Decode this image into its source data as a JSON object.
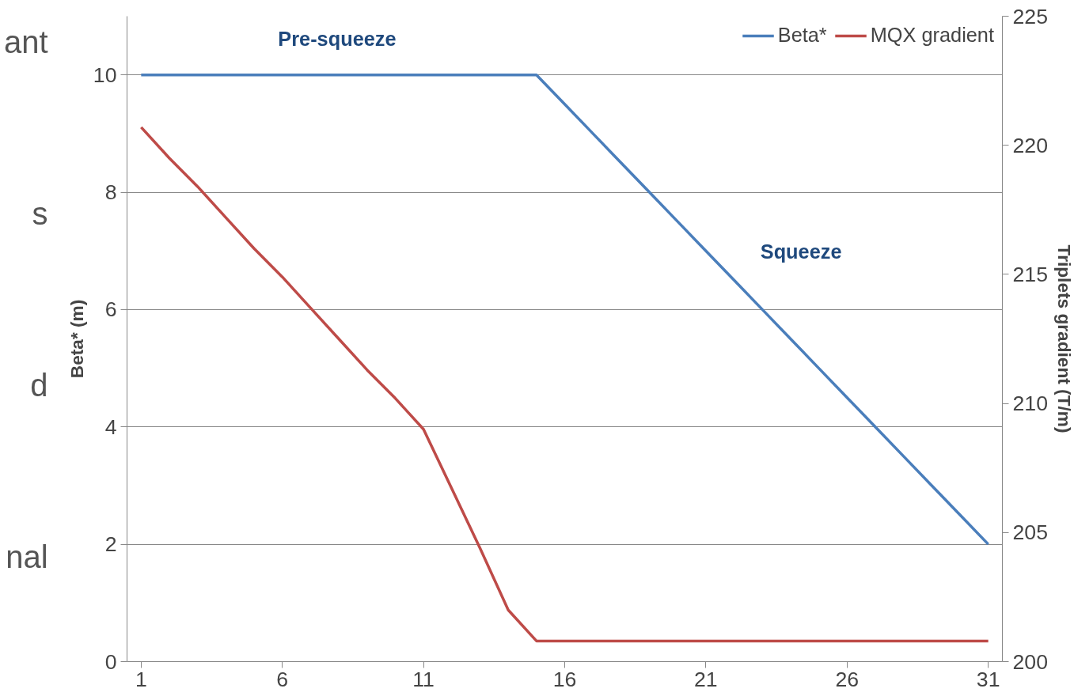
{
  "chart_data": {
    "type": "line",
    "ylabel": "Beta* (m)",
    "y2label": "Triplets gradient (T/m)",
    "x": [
      1,
      2,
      3,
      4,
      5,
      6,
      7,
      8,
      9,
      10,
      11,
      12,
      13,
      14,
      15,
      16,
      17,
      18,
      19,
      20,
      21,
      22,
      23,
      24,
      25,
      26,
      27,
      28,
      29,
      30,
      31
    ],
    "series": [
      {
        "name": "Beta*",
        "color": "#4a7ebb",
        "values": [
          10,
          10,
          10,
          10,
          10,
          10,
          10,
          10,
          10,
          10,
          10,
          10,
          10,
          10,
          10,
          9.5,
          9,
          8.5,
          8,
          7.5,
          7,
          6.5,
          6,
          5.5,
          5,
          4.5,
          4,
          3.5,
          3,
          2.5,
          2
        ]
      },
      {
        "name": "MQX gradient",
        "color": "#be4b48",
        "axis": "y2",
        "values": [
          220.7,
          219.5,
          218.4,
          217.2,
          216.0,
          214.9,
          213.7,
          212.5,
          211.3,
          210.2,
          209.0,
          206.7,
          204.4,
          202.0,
          200.8,
          200.8,
          200.8,
          200.8,
          200.8,
          200.8,
          200.8,
          200.8,
          200.8,
          200.8,
          200.8,
          200.8,
          200.8,
          200.8,
          200.8,
          200.8,
          200.8
        ]
      }
    ],
    "xlim": [
      0.5,
      31.5
    ],
    "xticks": [
      1,
      6,
      11,
      16,
      21,
      26,
      31
    ],
    "ylim": [
      0,
      11
    ],
    "yticks": [
      0,
      2,
      4,
      6,
      8,
      10
    ],
    "y2lim": [
      200,
      225
    ],
    "y2ticks": [
      200,
      205,
      210,
      215,
      220,
      225
    ],
    "grid": "y",
    "legend": "top right",
    "marker": "none",
    "line_style": "solid",
    "annotations": [
      "Pre-squeeze",
      "Squeeze",
      "ant",
      "s",
      "d",
      "nal"
    ]
  }
}
